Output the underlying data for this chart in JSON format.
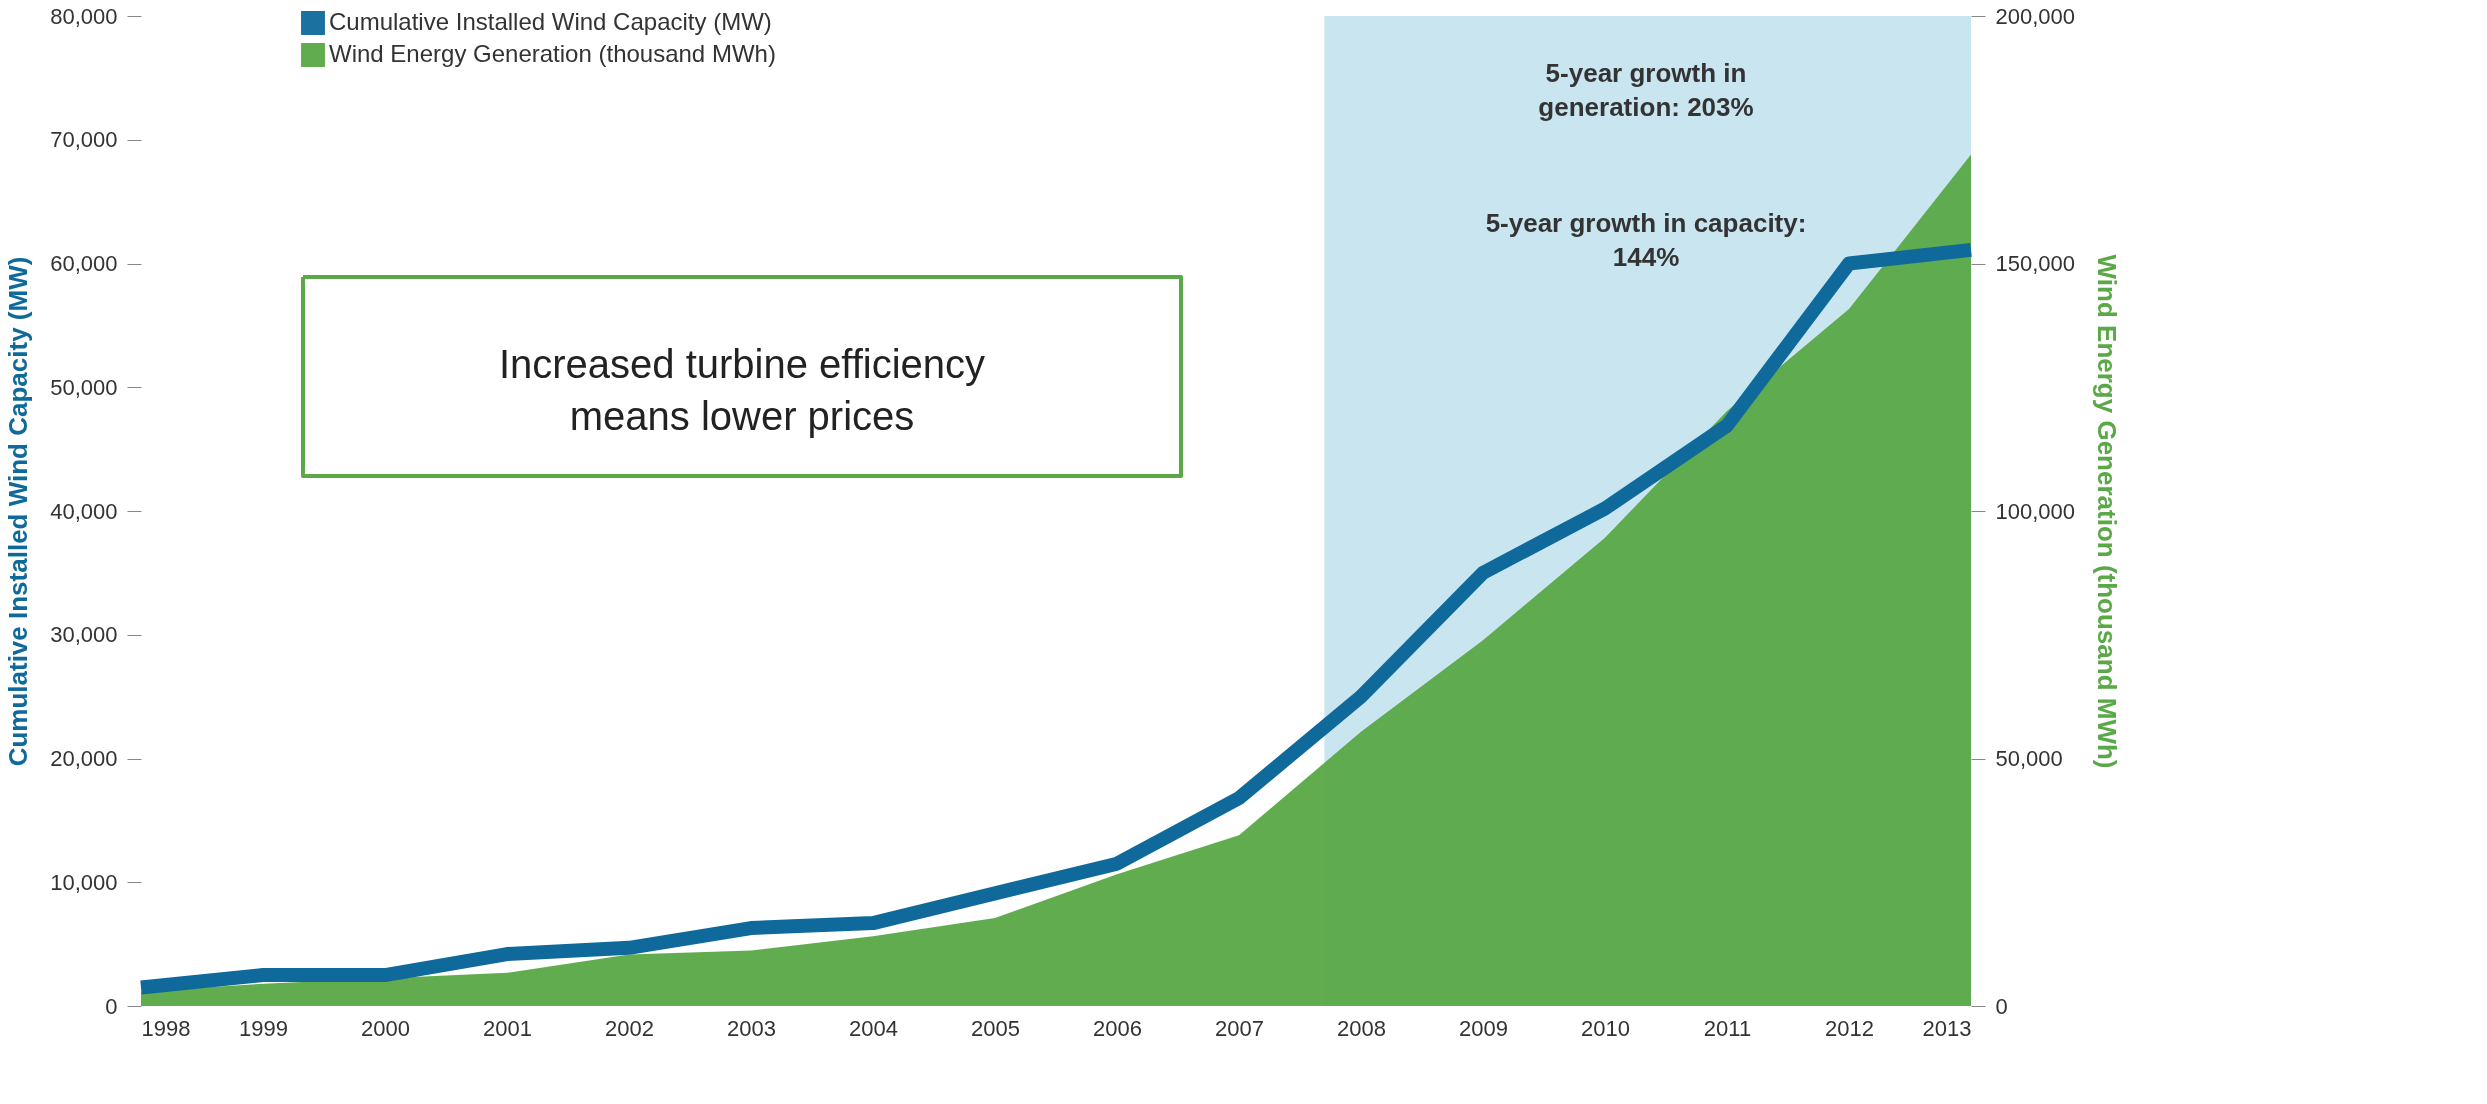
{
  "chart_data": {
    "type": "line",
    "ylabel": "Cumulative Installed Wind Capacity (MW)",
    "y2label": "Wind Energy Generation (thousand MWh)",
    "x": [
      1998,
      1999,
      2000,
      2001,
      2002,
      2003,
      2004,
      2005,
      2006,
      2007,
      2008,
      2009,
      2010,
      2011,
      2012,
      2013
    ],
    "series": [
      {
        "name": "Cumulative Installed Wind Capacity (MW)",
        "color": "#0f6a9b",
        "values": [
          1500,
          2500,
          2500,
          4200,
          4700,
          6300,
          6700,
          9100,
          11500,
          16800,
          25000,
          35000,
          40200,
          46900,
          60000,
          61100
        ]
      },
      {
        "name": "Wind Energy Generation (thousand MWh)",
        "type": "area",
        "axis": "y2",
        "color": "#5aa847",
        "values": [
          3000,
          4500,
          5600,
          6700,
          10400,
          11200,
          14100,
          17800,
          26600,
          34500,
          55400,
          73900,
          94600,
          120200,
          140800,
          172000
        ]
      }
    ],
    "xlim": [
      1998,
      2013
    ],
    "xticks": [
      1998,
      1999,
      2000,
      2001,
      2002,
      2003,
      2004,
      2005,
      2006,
      2007,
      2008,
      2009,
      2010,
      2011,
      2012,
      2013
    ],
    "ylim": [
      0,
      80000
    ],
    "yticks": [
      0,
      {
        "value": 10000,
        "label": "10,000"
      },
      {
        "value": 20000,
        "label": "20,000"
      },
      {
        "value": 30000,
        "label": "30,000"
      },
      {
        "value": 40000,
        "label": "40,000"
      },
      {
        "value": 50000,
        "label": "50,000"
      },
      {
        "value": 60000,
        "label": "60,000"
      },
      {
        "value": 70000,
        "label": "70,000"
      },
      {
        "value": 80000,
        "label": "80,000"
      }
    ],
    "y2lim": [
      0,
      200000
    ],
    "y2ticks": [
      0,
      {
        "value": 50000,
        "label": "50,000"
      },
      {
        "value": 100000,
        "label": "100,000"
      },
      {
        "value": 150000,
        "label": "150,000"
      },
      {
        "value": 200000,
        "label": "200,000"
      }
    ],
    "bands": [
      {
        "axis": "x",
        "from": 2007.7,
        "to": 2013,
        "color": "#c3e2ee"
      }
    ],
    "annotations": [
      "Increased turbine efficiency\nmeans lower prices",
      "5-year growth in\ngeneration: 203%",
      "5-year growth in capacity:\n144%"
    ],
    "legend": "top left",
    "grid": false
  }
}
